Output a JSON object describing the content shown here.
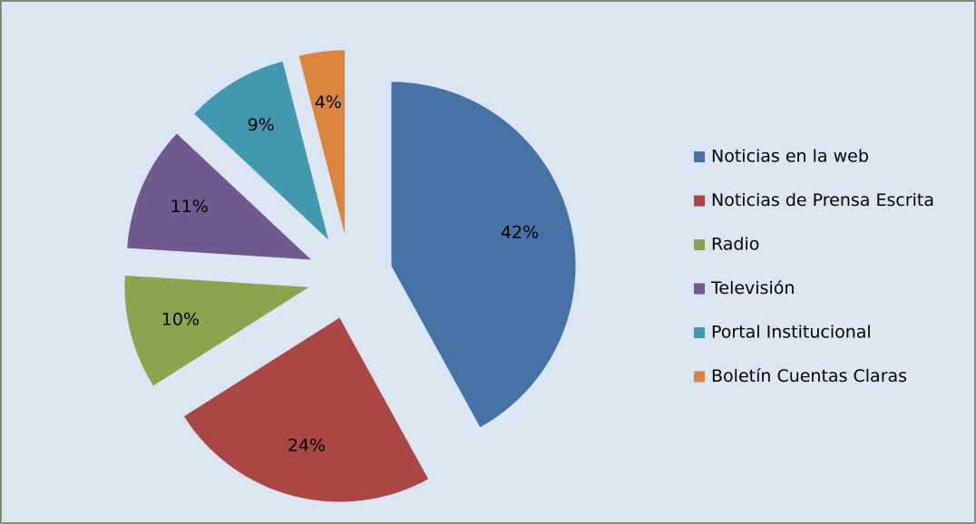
{
  "chart_data": {
    "type": "pie",
    "categories": [
      "Noticias en la web",
      "Noticias de Prensa Escrita",
      "Radio",
      "Televisión",
      "Portal Institucional",
      "Boletín Cuentas Claras"
    ],
    "values": [
      42,
      24,
      10,
      11,
      9,
      4
    ],
    "value_labels": [
      "42%",
      "24%",
      "10%",
      "11%",
      "9%",
      "4%"
    ],
    "colors": [
      "#4572a7",
      "#aa4643",
      "#89a54e",
      "#71588f",
      "#4198af",
      "#db843d"
    ],
    "legend": "right"
  }
}
